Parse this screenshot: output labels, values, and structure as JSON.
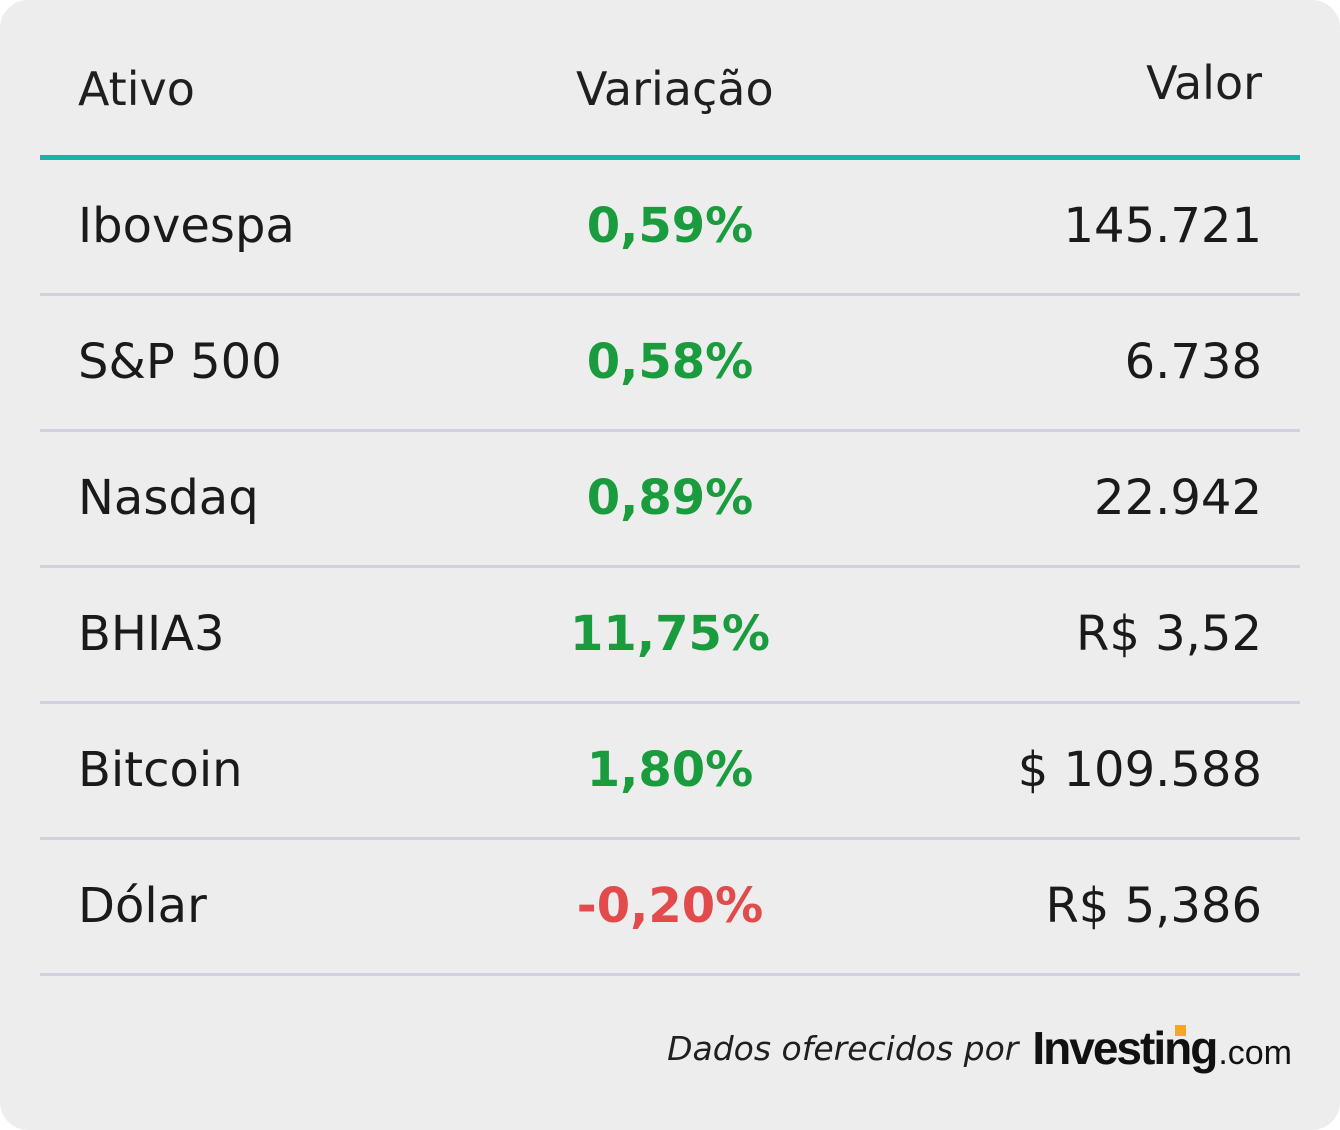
{
  "table": {
    "headers": {
      "ativo": "Ativo",
      "variacao": "Variação",
      "valor": "Valor"
    },
    "rows": [
      {
        "name": "Ibovespa",
        "variation": "0,59%",
        "direction": "up",
        "value": "145.721"
      },
      {
        "name": "S&P 500",
        "variation": "0,58%",
        "direction": "up",
        "value": "6.738"
      },
      {
        "name": "Nasdaq",
        "variation": "0,89%",
        "direction": "up",
        "value": "22.942"
      },
      {
        "name": "BHIA3",
        "variation": "11,75%",
        "direction": "up",
        "value": "R$ 3,52"
      },
      {
        "name": "Bitcoin",
        "variation": "1,80%",
        "direction": "up",
        "value": "$ 109.588"
      },
      {
        "name": "Dólar",
        "variation": "-0,20%",
        "direction": "down",
        "value": "R$ 5,386"
      }
    ]
  },
  "footer": {
    "text": "Dados oferecidos por",
    "logo_main": "Investing",
    "logo_suffix": ".com"
  },
  "colors": {
    "accent_rule": "#17b3a9",
    "positive": "#1a9b3d",
    "negative": "#e24b4b",
    "background": "#ededed",
    "logo_accent": "#f5a623"
  }
}
